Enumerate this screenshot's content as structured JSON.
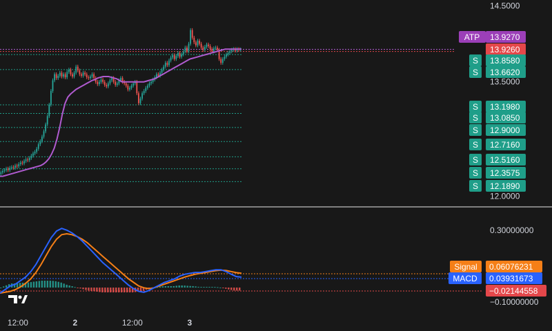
{
  "chart_data": [
    {
      "type": "candlestick",
      "pane": "price",
      "y_ticks": [
        {
          "label": "14.5000",
          "value": 14.5
        },
        {
          "label": "13.5000",
          "value": 13.5
        },
        {
          "label": "12.0000",
          "value": 12.0
        }
      ],
      "ylim": [
        11.93,
        14.53
      ],
      "x_labels": [
        {
          "label": "12:00",
          "t": 10
        },
        {
          "label": "2",
          "t": 42
        },
        {
          "label": "12:00",
          "t": 74
        },
        {
          "label": "3",
          "t": 106
        }
      ],
      "x_range": [
        0,
        135
      ],
      "price_series_sample": [
        12.31,
        12.33,
        12.34,
        12.36,
        12.34,
        12.37,
        12.38,
        12.37,
        12.4,
        12.39,
        12.42,
        12.44,
        12.43,
        12.46,
        12.48,
        12.47,
        12.5,
        12.53,
        12.56,
        12.58,
        12.62,
        12.68,
        12.72,
        12.78,
        12.85,
        12.94,
        13.05,
        13.2,
        13.38,
        13.52,
        13.6,
        13.55,
        13.58,
        13.62,
        13.57,
        13.6,
        13.56,
        13.63,
        13.66,
        13.6,
        13.57,
        13.62,
        13.7,
        13.65,
        13.6,
        13.58,
        13.62,
        13.6,
        13.56,
        13.55,
        13.57,
        13.6,
        13.55,
        13.5,
        13.47,
        13.5,
        13.53,
        13.5,
        13.46,
        13.44,
        13.48,
        13.52,
        13.55,
        13.5,
        13.46,
        13.48,
        13.52,
        13.55,
        13.5,
        13.48,
        13.45,
        13.4,
        13.42,
        13.45,
        13.48,
        13.5,
        13.35,
        13.22,
        13.28,
        13.35,
        13.38,
        13.42,
        13.45,
        13.48,
        13.5,
        13.53,
        13.56,
        13.6,
        13.58,
        13.62,
        13.66,
        13.7,
        13.75,
        13.72,
        13.78,
        13.82,
        13.85,
        13.8,
        13.84,
        13.88,
        13.83,
        13.86,
        13.9,
        13.95,
        13.9,
        14.0,
        14.18,
        14.08,
        14.02,
        13.98,
        14.04,
        14.0,
        13.95,
        13.92,
        13.96,
        13.99,
        13.97,
        13.93,
        13.9,
        13.94,
        13.95,
        13.92,
        13.8,
        13.75,
        13.8,
        13.83,
        13.86,
        13.88,
        13.9,
        13.92,
        13.93,
        13.91,
        13.93,
        13.92,
        13.926
      ],
      "atp_line_sample": [
        12.26,
        12.26,
        12.27,
        12.28,
        12.29,
        12.3,
        12.31,
        12.32,
        12.33,
        12.34,
        12.35,
        12.36,
        12.37,
        12.38,
        12.39,
        12.4,
        12.42,
        12.45,
        12.49,
        12.55,
        12.63,
        12.75,
        12.9,
        13.08,
        13.22,
        13.3,
        13.34,
        13.37,
        13.4,
        13.42,
        13.44,
        13.46,
        13.48,
        13.5,
        13.52,
        13.53,
        13.55,
        13.56,
        13.57,
        13.57,
        13.57,
        13.56,
        13.55,
        13.54,
        13.52,
        13.5,
        13.5,
        13.5,
        13.5,
        13.5,
        13.5,
        13.5,
        13.5,
        13.5,
        13.51,
        13.52,
        13.53,
        13.54,
        13.56,
        13.58,
        13.6,
        13.62,
        13.64,
        13.66,
        13.68,
        13.7,
        13.72,
        13.74,
        13.76,
        13.78,
        13.8,
        13.81,
        13.82,
        13.83,
        13.84,
        13.85,
        13.86,
        13.87,
        13.88,
        13.89,
        13.9,
        13.91,
        13.92,
        13.93,
        13.93,
        13.93,
        13.93,
        13.93,
        13.93,
        13.93
      ],
      "support_levels": [
        13.858,
        13.662,
        13.198,
        13.085,
        12.9,
        12.716,
        12.516,
        12.3575,
        12.189
      ],
      "badges": [
        {
          "label": "ATP",
          "value": "13.9270",
          "color": "#9c3fb8"
        },
        {
          "value": "13.9260",
          "color": "#e4474a"
        },
        {
          "label": "S",
          "value": "13.8580",
          "color": "#1f9e89"
        },
        {
          "label": "S",
          "value": "13.6620",
          "color": "#1f9e89"
        },
        {
          "label": "S",
          "value": "13.1980",
          "color": "#1f9e89"
        },
        {
          "label": "S",
          "value": "13.0850",
          "color": "#1f9e89"
        },
        {
          "label": "S",
          "value": "12.9000",
          "color": "#1f9e89"
        },
        {
          "label": "S",
          "value": "12.7160",
          "color": "#1f9e89"
        },
        {
          "label": "S",
          "value": "12.5160",
          "color": "#1f9e89"
        },
        {
          "label": "S",
          "value": "12.3575",
          "color": "#1f9e89"
        },
        {
          "label": "S",
          "value": "12.1890",
          "color": "#1f9e89"
        }
      ],
      "colors": {
        "up": "#26a69a",
        "down": "#ef5350",
        "atp": "#b05bd0",
        "support": "#1f9e89"
      }
    },
    {
      "type": "line",
      "pane": "macd",
      "y_ticks": [
        {
          "label": "0.30000000",
          "value": 0.3
        },
        {
          "label": "−0.10000000",
          "value": -0.1
        }
      ],
      "ylim": [
        -0.13,
        0.33
      ],
      "macd_sample": [
        -0.05,
        -0.03,
        -0.01,
        0.0,
        0.02,
        0.04,
        0.07,
        0.11,
        0.16,
        0.21,
        0.26,
        0.295,
        0.31,
        0.3,
        0.285,
        0.265,
        0.24,
        0.21,
        0.18,
        0.15,
        0.12,
        0.095,
        0.07,
        0.045,
        0.02,
        -0.005,
        -0.025,
        -0.04,
        -0.045,
        -0.035,
        -0.02,
        -0.005,
        0.01,
        0.02,
        0.03,
        0.045,
        0.055,
        0.06,
        0.065,
        0.065,
        0.07,
        0.075,
        0.08,
        0.08,
        0.07,
        0.055,
        0.042,
        0.039
      ],
      "signal_sample": [
        -0.05,
        -0.045,
        -0.04,
        -0.03,
        -0.015,
        0.005,
        0.03,
        0.065,
        0.11,
        0.16,
        0.21,
        0.25,
        0.275,
        0.28,
        0.275,
        0.265,
        0.25,
        0.23,
        0.205,
        0.18,
        0.155,
        0.13,
        0.105,
        0.08,
        0.055,
        0.03,
        0.01,
        -0.01,
        -0.02,
        -0.025,
        -0.02,
        -0.01,
        0.0,
        0.01,
        0.02,
        0.03,
        0.04,
        0.048,
        0.055,
        0.06,
        0.065,
        0.07,
        0.075,
        0.078,
        0.076,
        0.07,
        0.064,
        0.0608
      ],
      "badges": [
        {
          "label": "Signal",
          "value": "0.06076231",
          "color": "#f57f17"
        },
        {
          "label": "MACD",
          "value": "0.03931673",
          "color": "#2962ff"
        },
        {
          "value": "−0.02144558",
          "color": "#e4474a"
        }
      ],
      "colors": {
        "macd": "#2962ff",
        "signal": "#f57f17",
        "hist_up": "#26a69a",
        "hist_down": "#ef5350"
      }
    }
  ]
}
